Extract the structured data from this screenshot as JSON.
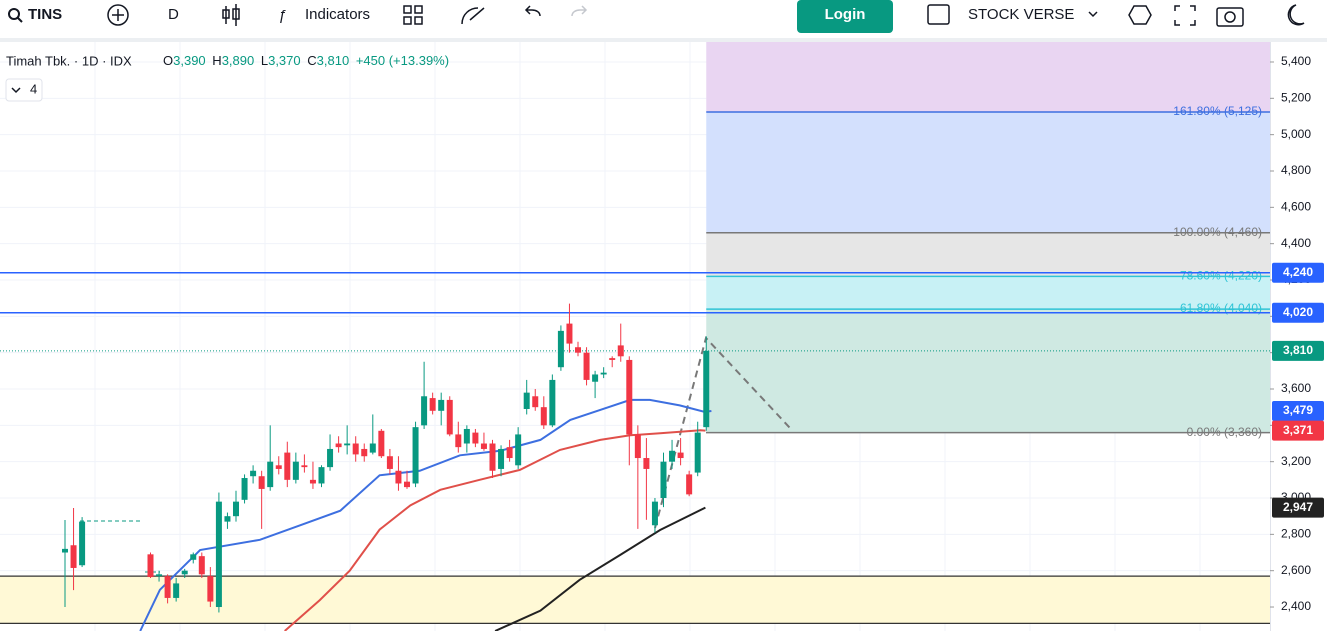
{
  "toolbar": {
    "symbol": "TINS",
    "interval": "D",
    "indicators": "Indicators",
    "login": "Login",
    "layout": "STOCK VERSE"
  },
  "legend": {
    "name": "Timah Tbk. · 1D · IDX",
    "o_label": "O",
    "open": "3,390",
    "h_label": "H",
    "high": "3,890",
    "l_label": "L",
    "low": "3,370",
    "c_label": "C",
    "close": "3,810",
    "change": "+450 (+13.39%)",
    "indicator_count": "4"
  },
  "chart_data": {
    "type": "candlestick",
    "up_color": "#089981",
    "down_color": "#f23645",
    "ylim": [
      2268,
      5510
    ],
    "yticks": [
      {
        "value": 2400,
        "label": "2,400"
      },
      {
        "value": 2600,
        "label": "2,600"
      },
      {
        "value": 2800,
        "label": "2,800"
      },
      {
        "value": 3000,
        "label": "3,000"
      },
      {
        "value": 3200,
        "label": "3,200"
      },
      {
        "value": 3400,
        "label": "3,400"
      },
      {
        "value": 3600,
        "label": "3,600"
      },
      {
        "value": 3800,
        "label": "3,800"
      },
      {
        "value": 4000,
        "label": "4,000"
      },
      {
        "value": 4200,
        "label": "4,200"
      },
      {
        "value": 4400,
        "label": "4,400"
      },
      {
        "value": 4600,
        "label": "4,600"
      },
      {
        "value": 4800,
        "label": "4,800"
      },
      {
        "value": 5000,
        "label": "5,000"
      },
      {
        "value": 5200,
        "label": "5,200"
      },
      {
        "value": 5400,
        "label": "5,400"
      }
    ],
    "grid": true,
    "open": [
      2700,
      2740,
      2630,
      null,
      null,
      null,
      null,
      null,
      null,
      null,
      2690,
      2570,
      2570,
      2450,
      2580,
      2660,
      2680,
      2570,
      2400,
      2870,
      2900,
      2990,
      3120,
      3120,
      3060,
      3180,
      3250,
      3100,
      3180,
      3100,
      3080,
      3170,
      3300,
      3290,
      3300,
      3270,
      3250,
      3370,
      3230,
      3150,
      3090,
      3080,
      3400,
      3550,
      3480,
      3540,
      3350,
      3300,
      3360,
      3300,
      3300,
      3160,
      3280,
      3180,
      3490,
      3560,
      3500,
      3400,
      3720,
      3960,
      3830,
      3800,
      3640,
      3680,
      3770,
      3840,
      3760,
      3350,
      3220,
      2850,
      3000,
      3200,
      3250,
      3130,
      3140,
      3390
    ],
    "high": [
      2879,
      2945,
      2895,
      null,
      null,
      null,
      null,
      null,
      null,
      null,
      2700,
      2600,
      2580,
      2560,
      2610,
      2700,
      2700,
      2620,
      3030,
      2920,
      3040,
      3130,
      3180,
      3150,
      3400,
      3230,
      3310,
      3250,
      3240,
      3200,
      3180,
      3350,
      3340,
      3400,
      3340,
      3300,
      3460,
      3380,
      3270,
      3230,
      3150,
      3420,
      3750,
      3580,
      3580,
      3560,
      3420,
      3400,
      3380,
      3360,
      3320,
      3290,
      3320,
      3390,
      3650,
      3600,
      3560,
      3680,
      3950,
      4070,
      3860,
      3830,
      3700,
      3720,
      3780,
      3960,
      3780,
      3400,
      3330,
      3000,
      3250,
      3320,
      3330,
      3150,
      3420,
      3890
    ],
    "low": [
      2400,
      2493,
      2620,
      null,
      null,
      null,
      null,
      null,
      null,
      null,
      2560,
      2540,
      2420,
      2430,
      2560,
      2640,
      2560,
      2400,
      2370,
      2830,
      2870,
      2970,
      3080,
      2830,
      3040,
      3130,
      3060,
      3080,
      3140,
      3050,
      3060,
      3150,
      3250,
      3240,
      3200,
      3200,
      3240,
      3220,
      3130,
      3040,
      3050,
      3060,
      3380,
      3460,
      3400,
      3340,
      3250,
      3250,
      3280,
      3260,
      3110,
      3120,
      3200,
      3160,
      3460,
      3480,
      3380,
      3390,
      3700,
      3800,
      3780,
      3620,
      3550,
      3660,
      3720,
      3750,
      3180,
      2830,
      2880,
      2810,
      2950,
      3160,
      3180,
      3010,
      3120,
      3370
    ],
    "close": [
      2720,
      2615,
      2870,
      null,
      null,
      null,
      null,
      null,
      null,
      null,
      2565,
      2580,
      2450,
      2530,
      2600,
      2690,
      2580,
      2430,
      2980,
      2900,
      2980,
      3110,
      3150,
      3050,
      3200,
      3160,
      3100,
      3200,
      3170,
      3080,
      3170,
      3270,
      3280,
      3300,
      3240,
      3230,
      3300,
      3230,
      3160,
      3080,
      3060,
      3390,
      3560,
      3480,
      3540,
      3350,
      3280,
      3380,
      3300,
      3270,
      3150,
      3270,
      3220,
      3350,
      3580,
      3500,
      3400,
      3650,
      3920,
      3850,
      3800,
      3650,
      3680,
      3690,
      3760,
      3780,
      3350,
      3220,
      3160,
      2980,
      3200,
      3260,
      3220,
      3020,
      3360,
      3810
    ],
    "series": [
      {
        "color": "#3d6fe0",
        "x": [
          8.8,
          11.1,
          15.8,
          22.8,
          27.5,
          32.2,
          36.8,
          41.5,
          46.2,
          50.9,
          55.6,
          59.1,
          62.6,
          66.1,
          68.4,
          71.9,
          74.8,
          75.6
        ],
        "values": [
          2268,
          2495,
          2714,
          2770,
          2850,
          2930,
          3125,
          3150,
          3235,
          3260,
          3320,
          3430,
          3485,
          3540,
          3540,
          3510,
          3474,
          3479
        ]
      },
      {
        "color": "#e0504a",
        "x": [
          25.7,
          29.8,
          33.3,
          36.8,
          40.4,
          43.9,
          48.5,
          53.2,
          57.9,
          62.6,
          66.1,
          69.6,
          74.3,
          74.9
        ],
        "values": [
          2268,
          2438,
          2600,
          2826,
          2960,
          3045,
          3100,
          3155,
          3265,
          3320,
          3345,
          3357,
          3373,
          3371
        ]
      },
      {
        "color": "#222222",
        "x": [
          50.3,
          55.6,
          60.2,
          64.9,
          69.6,
          74.9
        ],
        "values": [
          2268,
          2380,
          2550,
          2686,
          2824,
          2947
        ]
      }
    ],
    "hlines": [
      {
        "value": 4240,
        "label": "4,240",
        "color": "#2962ff"
      },
      {
        "value": 4020,
        "label": "4,020",
        "color": "#2962ff"
      }
    ],
    "last": {
      "value": 3810,
      "label": "3,810"
    },
    "ma_labels": [
      {
        "value": 3479,
        "label": "3,479"
      },
      {
        "value": 3371,
        "label": "3,371"
      },
      {
        "value": 2947,
        "label": "2,947"
      }
    ],
    "fib": [
      {
        "value": 5125,
        "label": "161.80% (5,125)",
        "color": "#3d6fe0"
      },
      {
        "value": 4460,
        "label": "100.00% (4,460)",
        "color": "#787878"
      },
      {
        "value": 4220,
        "label": "78.60% (4,220)",
        "color": "#2ec4d6"
      },
      {
        "value": 4040,
        "label": "61.80% (4,040)",
        "color": "#2ec4d6"
      },
      {
        "value": 3360,
        "label": "0.00% (3,360)",
        "color": "#787878"
      }
    ],
    "zone": [
      2310,
      2570
    ]
  }
}
